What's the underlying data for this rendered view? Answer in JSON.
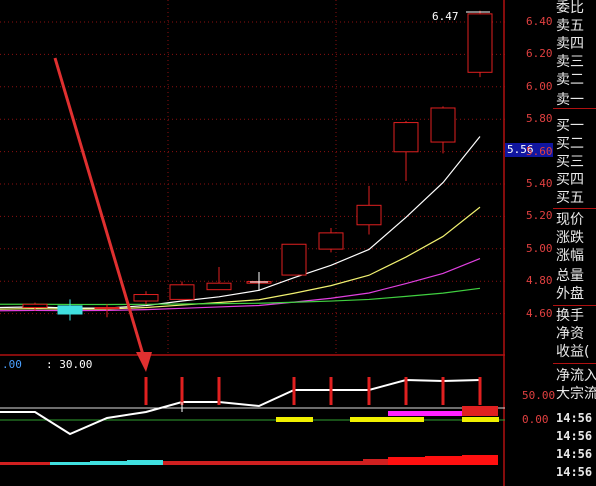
{
  "price_axis": {
    "ticks": [
      "6.40",
      "6.20",
      "6.00",
      "5.80",
      "5.60",
      "5.40",
      "5.20",
      "5.00",
      "4.80",
      "4.60"
    ],
    "current_price": "5.56",
    "high_marker": "6.47"
  },
  "indicator": {
    "left_value": ".00",
    "param_value": ": 30.00",
    "ticks": [
      "50.00",
      "0.00"
    ]
  },
  "right_panel": {
    "labels": [
      "委比",
      "卖五",
      "卖四",
      "卖三",
      "卖二",
      "卖一",
      "买一",
      "买二",
      "买三",
      "买四",
      "买五",
      "现价",
      "涨跌",
      "涨幅",
      "总量",
      "外盘",
      "换手",
      "净资",
      "收益(",
      "净流入",
      "大宗流"
    ],
    "times": [
      "14:56",
      "14:56",
      "14:56",
      "14:56"
    ]
  },
  "colors": {
    "up": "#e02020",
    "down": "#40e0e0",
    "ma5": "#ffffff",
    "ma10": "#f0f070",
    "ma20": "#e040e0",
    "ma60": "#40d040",
    "grid": "#8b1010"
  },
  "candles": [
    {
      "o": 4.64,
      "h": 4.67,
      "l": 4.62,
      "c": 4.66
    },
    {
      "o": 4.65,
      "h": 4.69,
      "l": 4.56,
      "c": 4.6
    },
    {
      "o": 4.64,
      "h": 4.66,
      "l": 4.58,
      "c": 4.64
    },
    {
      "o": 4.68,
      "h": 4.74,
      "l": 4.66,
      "c": 4.72
    },
    {
      "o": 4.69,
      "h": 4.8,
      "l": 4.69,
      "c": 4.78
    },
    {
      "o": 4.75,
      "h": 4.89,
      "l": 4.75,
      "c": 4.79
    },
    {
      "o": 4.79,
      "h": 4.84,
      "l": 4.77,
      "c": 4.8
    },
    {
      "o": 4.84,
      "h": 5.03,
      "l": 4.84,
      "c": 5.03
    },
    {
      "o": 5.0,
      "h": 5.13,
      "l": 4.98,
      "c": 5.1
    },
    {
      "o": 5.15,
      "h": 5.39,
      "l": 5.09,
      "c": 5.27
    },
    {
      "o": 5.6,
      "h": 5.79,
      "l": 5.42,
      "c": 5.78
    },
    {
      "o": 5.66,
      "h": 5.88,
      "l": 5.59,
      "c": 5.87
    },
    {
      "o": 6.09,
      "h": 6.47,
      "l": 6.06,
      "c": 6.45
    }
  ]
}
